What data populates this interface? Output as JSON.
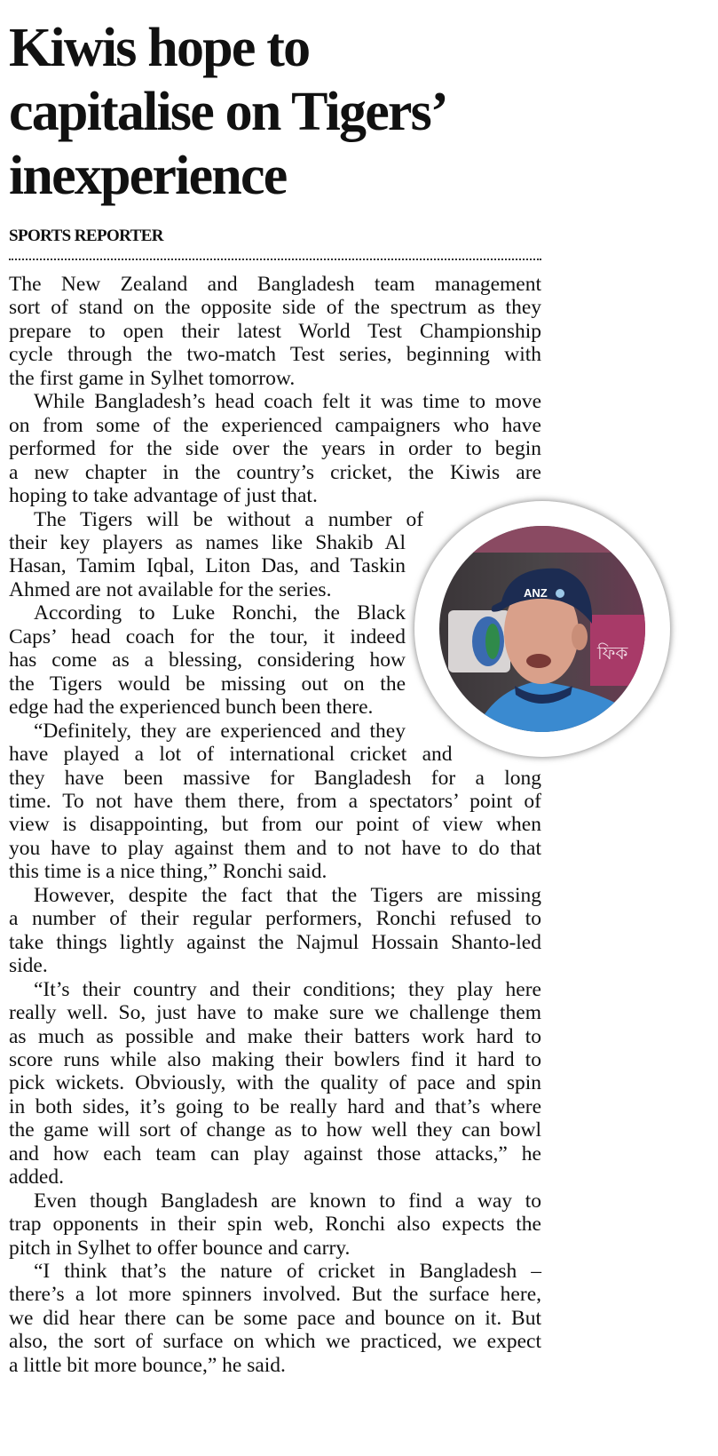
{
  "headline": [
    "Kiwis hope to",
    "capitalise on Tigers’",
    "inexperience"
  ],
  "byline": "SPORTS REPORTER",
  "photo": {
    "subject": "Luke Ronchi wearing ANZ cap",
    "cap_logo": "ANZ"
  },
  "paragraphs": [
    {
      "indent": false,
      "lines": [
        "The New Zealand and Bangladesh team management",
        "sort of stand on the opposite side of the spectrum as they",
        "prepare to open their latest World Test Championship",
        "cycle through the two-match Test series, beginning with",
        "the first game in Sylhet tomorrow."
      ]
    },
    {
      "indent": true,
      "lines": [
        "While Bangladesh’s head coach felt it was time to move",
        "on from some of the experienced campaigners who have",
        "performed for the side over the years in order to begin",
        "a new chapter in the country’s cricket, the Kiwis are",
        "hoping to take advantage of just that."
      ]
    },
    {
      "indent": true,
      "lines": [
        "The Tigers will be without a number of",
        "their key players as names like Shakib Al",
        "Hasan, Tamim Iqbal, Liton Das, and Taskin",
        "Ahmed are not available for the series."
      ]
    },
    {
      "indent": true,
      "lines": [
        "According to Luke Ronchi, the Black",
        "Caps’ head coach for the tour, it indeed",
        "has come as a blessing, considering how",
        "the Tigers would be missing out on the",
        "edge had the experienced bunch been there."
      ]
    },
    {
      "indent": true,
      "lines": [
        "“Definitely, they are experienced and they",
        "have played a lot of international cricket and",
        "they have been massive for Bangladesh for a long",
        "time. To not have them there, from a spectators’ point of",
        "view is disappointing, but from our point of view when",
        "you have to play against them and to not have to do that",
        "this time is a nice thing,” Ronchi said."
      ]
    },
    {
      "indent": true,
      "lines": [
        "However, despite the fact that the Tigers are missing",
        "a number of their regular performers, Ronchi refused to",
        "take things lightly against the Najmul Hossain Shanto-led",
        "side."
      ]
    },
    {
      "indent": true,
      "lines": [
        "“It’s their country and their conditions; they play here",
        "really well. So, just have to make sure we challenge them",
        "as much as possible and make their batters work hard to",
        "score runs while also making their bowlers find it hard to",
        "pick wickets. Obviously, with the quality of pace and spin",
        "in both sides, it’s going to be really hard and that’s where",
        "the game will sort of change as to how well they can bowl",
        "and how each team can play against those attacks,” he",
        "added."
      ]
    },
    {
      "indent": true,
      "lines": [
        "Even though Bangladesh are known to find a way to",
        "trap opponents in their spin web, Ronchi also expects the",
        "pitch in Sylhet to offer bounce and carry."
      ]
    },
    {
      "indent": true,
      "lines": [
        "“I think that’s the nature of cricket in Bangladesh –",
        "there’s a lot more spinners involved. But the surface here,",
        "we did hear there can be some pace and bounce on it. But",
        "also, the sort of surface on which we practiced, we expect",
        "a little bit more bounce,” he said."
      ]
    }
  ]
}
